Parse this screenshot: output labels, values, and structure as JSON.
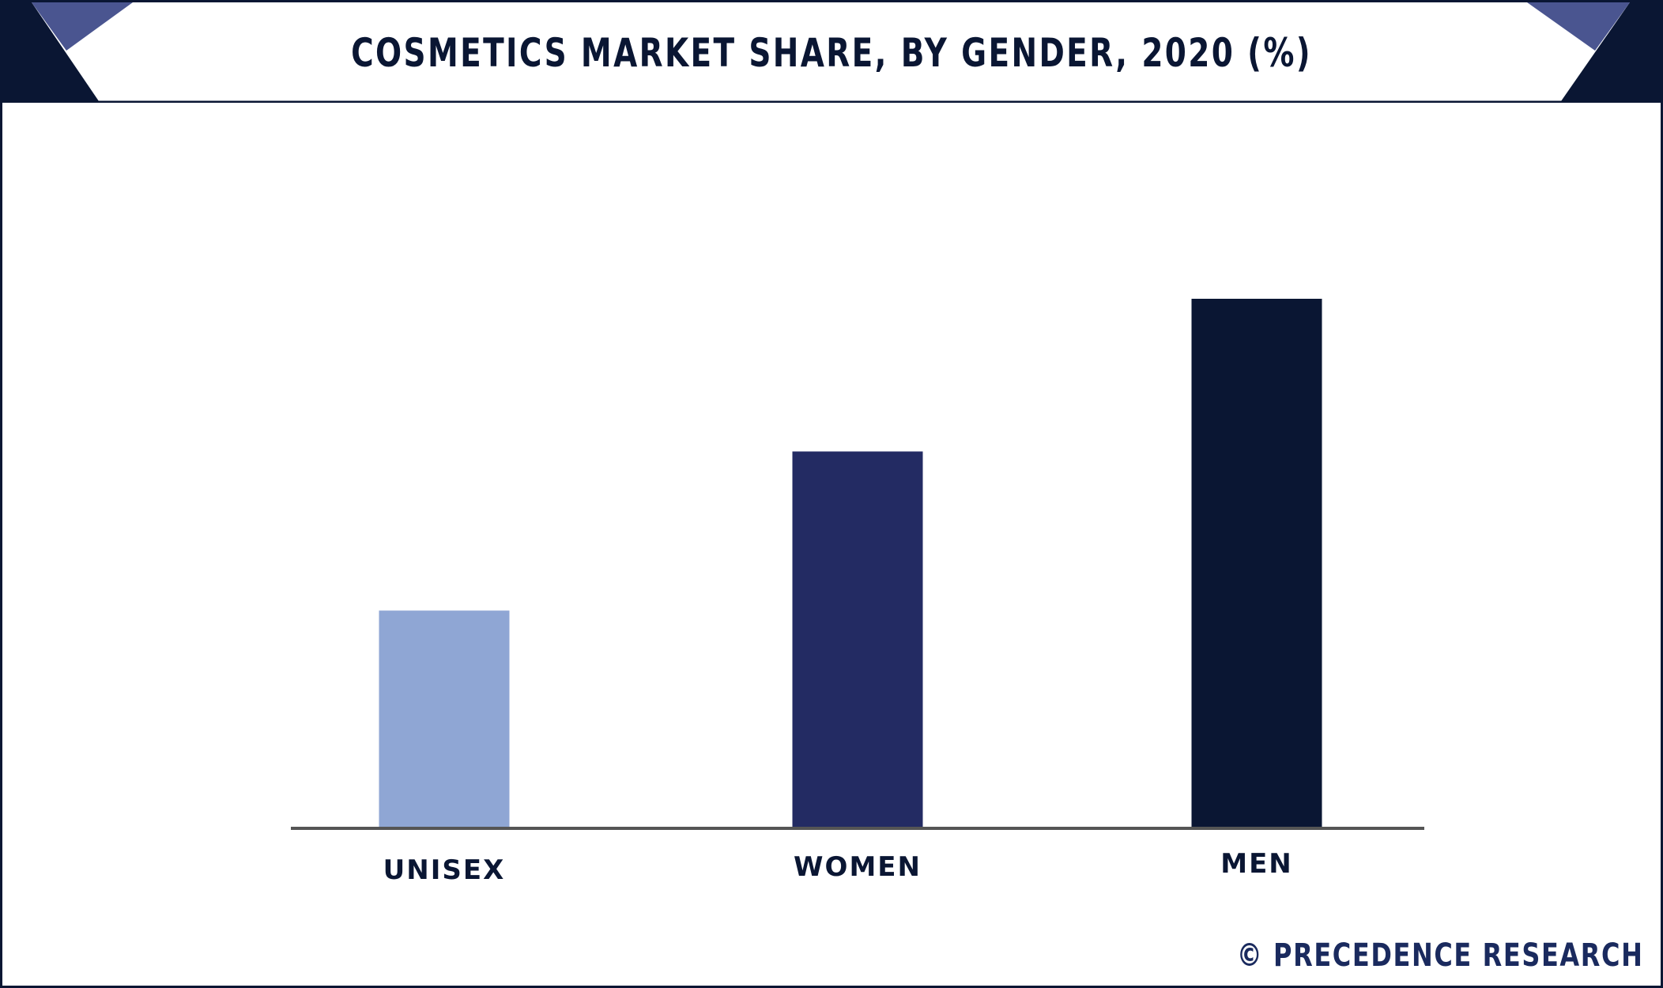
{
  "header": {
    "title": "COSMETICS MARKET SHARE, BY GENDER, 2020 (%)"
  },
  "footer": {
    "brand": "© PRECEDENCE RESEARCH"
  },
  "colors": {
    "frame": "#0a1633",
    "corner_dark": "#0a1633",
    "corner_accent": "#4a5590",
    "axis": "#555555"
  },
  "chart_data": {
    "type": "bar",
    "title": "COSMETICS MARKET SHARE, BY GENDER, 2020 (%)",
    "xlabel": "",
    "ylabel": "",
    "categories": [
      "UNISEX",
      "WOMEN",
      "MEN"
    ],
    "values": [
      20.6,
      35.7,
      50.2
    ],
    "colors": [
      "#8fa6d4",
      "#232b63",
      "#0a1633"
    ],
    "ylim": [
      0,
      60
    ],
    "grid": false,
    "legend": "none"
  }
}
